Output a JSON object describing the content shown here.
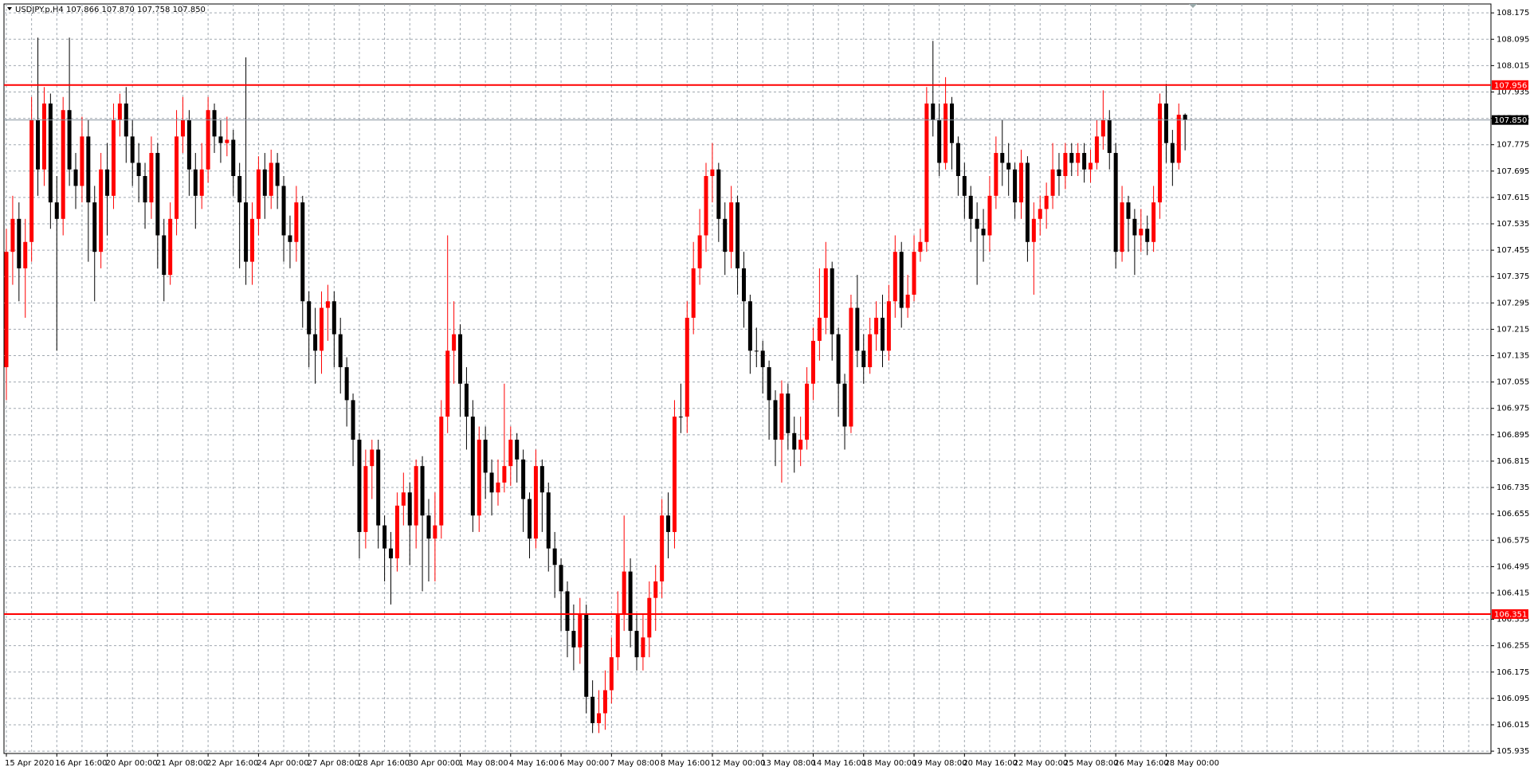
{
  "chart_data": {
    "type": "candlestick",
    "title": "USDJPY.p,H4  107.866 107.870 107.758 107.850",
    "categories": [
      "15 Apr 2020",
      null,
      null,
      null,
      null,
      null,
      null,
      null,
      "16 Apr 16:00",
      null,
      null,
      null,
      null,
      null,
      null,
      null,
      "20 Apr 00:00",
      null,
      null,
      null,
      null,
      null,
      null,
      null,
      "21 Apr 08:00",
      null,
      null,
      null,
      null,
      null,
      null,
      null,
      "22 Apr 16:00",
      null,
      null,
      null,
      null,
      null,
      null,
      null,
      "24 Apr 00:00",
      null,
      null,
      null,
      null,
      null,
      null,
      null,
      "27 Apr 08:00",
      null,
      null,
      null,
      null,
      null,
      null,
      null,
      "28 Apr 16:00",
      null,
      null,
      null,
      null,
      null,
      null,
      null,
      "30 Apr 00:00",
      null,
      null,
      null,
      null,
      null,
      null,
      null,
      "1 May 08:00",
      null,
      null,
      null,
      null,
      null,
      null,
      null,
      "4 May 16:00",
      null,
      null,
      null,
      null,
      null,
      null,
      null,
      "6 May 00:00",
      null,
      null,
      null,
      null,
      null,
      null,
      null,
      "7 May 08:00",
      null,
      null,
      null,
      null,
      null,
      null,
      null,
      "8 May 16:00",
      null,
      null,
      null,
      null,
      null,
      null,
      null,
      "12 May 00:00",
      null,
      null,
      null,
      null,
      null,
      null,
      null,
      "13 May 08:00",
      null,
      null,
      null,
      null,
      null,
      null,
      null,
      "14 May 16:00",
      null,
      null,
      null,
      null,
      null,
      null,
      null,
      "18 May 00:00",
      null,
      null,
      null,
      null,
      null,
      null,
      null,
      "19 May 08:00",
      null,
      null,
      null,
      null,
      null,
      null,
      null,
      "20 May 16:00",
      null,
      null,
      null,
      null,
      null,
      null,
      null,
      "22 May 00:00",
      null,
      null,
      null,
      null,
      null,
      null,
      null,
      "25 May 08:00",
      null,
      null,
      null,
      null,
      null,
      null,
      null,
      "26 May 16:00",
      null,
      null,
      null,
      null,
      null,
      null,
      null,
      "28 May 00:00",
      null,
      null,
      null
    ],
    "open": [
      107.1,
      107.45,
      107.55,
      107.4,
      107.48,
      107.85,
      107.7,
      107.9,
      107.6,
      107.55,
      107.88,
      107.7,
      107.65,
      107.8,
      107.6,
      107.45,
      107.7,
      107.62,
      107.85,
      107.9,
      107.8,
      107.72,
      107.68,
      107.6,
      107.75,
      107.5,
      107.38,
      107.55,
      107.8,
      107.85,
      107.7,
      107.62,
      107.7,
      107.88,
      107.8,
      107.78,
      107.79,
      107.68,
      107.6,
      107.42,
      107.55,
      107.7,
      107.62,
      107.72,
      107.65,
      107.5,
      107.48,
      107.6,
      107.3,
      107.2,
      107.15,
      107.28,
      107.3,
      107.2,
      107.1,
      107.0,
      106.88,
      106.6,
      106.8,
      106.85,
      106.62,
      106.55,
      106.52,
      106.68,
      106.72,
      106.62,
      106.8,
      106.65,
      106.58,
      106.62,
      106.95,
      107.15,
      107.2,
      107.05,
      106.95,
      106.65,
      106.88,
      106.78,
      106.72,
      106.75,
      106.8,
      106.88,
      106.82,
      106.7,
      106.58,
      106.8,
      106.72,
      106.55,
      106.5,
      106.42,
      106.3,
      106.25,
      106.35,
      106.1,
      106.02,
      106.05,
      106.12,
      106.22,
      106.35,
      106.48,
      106.3,
      106.22,
      106.28,
      106.4,
      106.45,
      106.65,
      106.6,
      106.95,
      106.95,
      107.25,
      107.4,
      107.5,
      107.68,
      107.7,
      107.55,
      107.45,
      107.6,
      107.4,
      107.3,
      107.15,
      107.15,
      107.1,
      107.0,
      106.88,
      107.02,
      106.9,
      106.85,
      106.88,
      107.05,
      107.18,
      107.25,
      107.4,
      107.2,
      107.05,
      106.92,
      107.28,
      107.15,
      107.1,
      107.2,
      107.25,
      107.15,
      107.3,
      107.45,
      107.28,
      107.32,
      107.45,
      107.48,
      107.9,
      107.85,
      107.72,
      107.9,
      107.78,
      107.68,
      107.62,
      107.55,
      107.52,
      107.5,
      107.62,
      107.75,
      107.72,
      107.7,
      107.6,
      107.72,
      107.48,
      107.55,
      107.58,
      107.62,
      107.7,
      107.68,
      107.75,
      107.72,
      107.75,
      107.7,
      107.72,
      107.8,
      107.85,
      107.75,
      107.45,
      107.6,
      107.55,
      107.5,
      107.52,
      107.48,
      107.6,
      107.9,
      107.78,
      107.72,
      107.866
    ],
    "high": [
      107.52,
      107.62,
      107.6,
      107.55,
      107.92,
      108.1,
      107.95,
      107.93,
      107.68,
      107.92,
      108.1,
      107.75,
      107.86,
      107.85,
      107.65,
      107.75,
      107.78,
      107.9,
      107.93,
      107.95,
      107.85,
      107.78,
      107.72,
      107.8,
      107.78,
      107.55,
      107.6,
      107.88,
      107.92,
      107.88,
      107.75,
      107.78,
      107.92,
      107.9,
      107.85,
      107.86,
      107.82,
      107.72,
      108.04,
      107.6,
      107.74,
      107.75,
      107.76,
      107.75,
      107.68,
      107.56,
      107.65,
      107.62,
      107.33,
      107.28,
      107.33,
      107.35,
      107.33,
      107.25,
      107.13,
      107.02,
      106.9,
      106.85,
      106.88,
      106.88,
      106.65,
      106.6,
      106.72,
      106.78,
      106.75,
      106.82,
      106.83,
      106.7,
      106.72,
      107.0,
      107.5,
      107.3,
      107.23,
      107.1,
      107.0,
      106.92,
      106.92,
      106.82,
      106.82,
      107.05,
      106.92,
      106.9,
      106.85,
      106.72,
      106.85,
      106.82,
      106.75,
      106.6,
      106.52,
      106.45,
      106.38,
      106.4,
      106.38,
      106.15,
      106.12,
      106.18,
      106.28,
      106.42,
      106.65,
      106.52,
      106.35,
      106.35,
      106.45,
      106.5,
      106.7,
      106.72,
      107.0,
      107.05,
      107.3,
      107.48,
      107.58,
      107.72,
      107.78,
      107.72,
      107.6,
      107.65,
      107.62,
      107.45,
      107.32,
      107.22,
      107.18,
      107.12,
      107.03,
      107.06,
      107.05,
      106.95,
      106.95,
      107.1,
      107.22,
      107.4,
      107.48,
      107.42,
      107.22,
      107.08,
      107.32,
      107.38,
      107.2,
      107.25,
      107.3,
      107.32,
      107.35,
      107.5,
      107.48,
      107.38,
      107.5,
      107.52,
      107.95,
      108.09,
      107.9,
      107.98,
      107.92,
      107.8,
      107.72,
      107.65,
      107.6,
      107.58,
      107.68,
      107.8,
      107.85,
      107.78,
      107.72,
      107.76,
      107.74,
      107.6,
      107.62,
      107.66,
      107.78,
      107.75,
      107.78,
      107.78,
      107.78,
      107.78,
      107.76,
      107.85,
      107.94,
      107.88,
      107.78,
      107.65,
      107.62,
      107.58,
      107.58,
      107.56,
      107.65,
      107.93,
      107.96,
      107.82,
      107.9,
      107.87
    ],
    "low": [
      107.0,
      107.35,
      107.3,
      107.25,
      107.42,
      107.62,
      107.65,
      107.52,
      107.15,
      107.5,
      107.65,
      107.58,
      107.6,
      107.42,
      107.3,
      107.4,
      107.5,
      107.58,
      107.8,
      107.72,
      107.65,
      107.6,
      107.52,
      107.55,
      107.4,
      107.3,
      107.35,
      107.5,
      107.75,
      107.62,
      107.52,
      107.58,
      107.66,
      107.75,
      107.72,
      107.74,
      107.62,
      107.4,
      107.35,
      107.35,
      107.5,
      107.55,
      107.58,
      107.58,
      107.42,
      107.4,
      107.42,
      107.22,
      107.1,
      107.05,
      107.08,
      107.18,
      107.1,
      107.02,
      106.92,
      106.8,
      106.52,
      106.55,
      106.7,
      106.55,
      106.45,
      106.38,
      106.48,
      106.62,
      106.5,
      106.55,
      106.42,
      106.45,
      106.45,
      106.58,
      106.9,
      107.05,
      106.95,
      106.85,
      106.6,
      106.6,
      106.7,
      106.65,
      106.68,
      106.72,
      106.74,
      106.75,
      106.6,
      106.52,
      106.55,
      106.6,
      106.48,
      106.4,
      106.3,
      106.22,
      106.18,
      106.2,
      106.05,
      105.99,
      105.99,
      106.0,
      106.08,
      106.18,
      106.3,
      106.25,
      106.18,
      106.18,
      106.22,
      106.3,
      106.4,
      106.52,
      106.55,
      106.9,
      106.9,
      107.2,
      107.35,
      107.45,
      107.6,
      107.48,
      107.38,
      107.4,
      107.32,
      107.22,
      107.08,
      107.1,
      107.02,
      106.88,
      106.8,
      106.75,
      106.85,
      106.78,
      106.8,
      106.85,
      107.0,
      107.12,
      107.2,
      107.12,
      106.95,
      106.85,
      106.9,
      107.1,
      107.05,
      107.08,
      107.15,
      107.1,
      107.12,
      107.25,
      107.22,
      107.25,
      107.3,
      107.42,
      107.45,
      107.8,
      107.68,
      107.7,
      107.7,
      107.62,
      107.55,
      107.48,
      107.35,
      107.42,
      107.45,
      107.58,
      107.65,
      107.62,
      107.55,
      107.55,
      107.42,
      107.32,
      107.5,
      107.52,
      107.58,
      107.62,
      107.64,
      107.68,
      107.68,
      107.66,
      107.66,
      107.7,
      107.76,
      107.7,
      107.4,
      107.42,
      107.45,
      107.38,
      107.45,
      107.44,
      107.45,
      107.55,
      107.72,
      107.65,
      107.7,
      107.758
    ],
    "close": [
      107.45,
      107.55,
      107.4,
      107.48,
      107.85,
      107.7,
      107.9,
      107.6,
      107.55,
      107.88,
      107.7,
      107.65,
      107.8,
      107.6,
      107.45,
      107.7,
      107.62,
      107.85,
      107.9,
      107.8,
      107.72,
      107.68,
      107.6,
      107.75,
      107.5,
      107.38,
      107.55,
      107.8,
      107.85,
      107.7,
      107.62,
      107.7,
      107.88,
      107.8,
      107.78,
      107.79,
      107.68,
      107.6,
      107.42,
      107.55,
      107.7,
      107.62,
      107.72,
      107.65,
      107.5,
      107.48,
      107.6,
      107.3,
      107.2,
      107.15,
      107.28,
      107.3,
      107.2,
      107.1,
      107.0,
      106.88,
      106.6,
      106.8,
      106.85,
      106.62,
      106.55,
      106.52,
      106.68,
      106.72,
      106.62,
      106.8,
      106.65,
      106.58,
      106.62,
      106.95,
      107.15,
      107.2,
      107.05,
      106.95,
      106.65,
      106.88,
      106.78,
      106.72,
      106.75,
      106.8,
      106.88,
      106.82,
      106.7,
      106.58,
      106.8,
      106.72,
      106.55,
      106.5,
      106.42,
      106.3,
      106.25,
      106.35,
      106.1,
      106.02,
      106.05,
      106.12,
      106.22,
      106.35,
      106.48,
      106.3,
      106.22,
      106.28,
      106.4,
      106.45,
      106.65,
      106.6,
      106.95,
      106.95,
      107.25,
      107.4,
      107.5,
      107.68,
      107.7,
      107.55,
      107.45,
      107.6,
      107.4,
      107.3,
      107.15,
      107.15,
      107.1,
      107.0,
      106.88,
      107.02,
      106.9,
      106.85,
      106.88,
      107.05,
      107.18,
      107.25,
      107.4,
      107.2,
      107.05,
      106.92,
      107.28,
      107.15,
      107.1,
      107.2,
      107.25,
      107.15,
      107.3,
      107.45,
      107.28,
      107.32,
      107.45,
      107.48,
      107.9,
      107.85,
      107.72,
      107.9,
      107.78,
      107.68,
      107.62,
      107.55,
      107.52,
      107.5,
      107.62,
      107.75,
      107.72,
      107.7,
      107.6,
      107.72,
      107.48,
      107.55,
      107.58,
      107.62,
      107.7,
      107.68,
      107.75,
      107.72,
      107.75,
      107.7,
      107.72,
      107.8,
      107.85,
      107.75,
      107.45,
      107.6,
      107.55,
      107.5,
      107.52,
      107.48,
      107.6,
      107.9,
      107.78,
      107.72,
      107.866,
      107.85
    ],
    "up_color": "#ff0000",
    "down_color": "#000000",
    "ylim": [
      105.928,
      108.202
    ],
    "yticks": [
      108.175,
      108.095,
      108.015,
      107.935,
      107.855,
      107.775,
      107.695,
      107.615,
      107.535,
      107.455,
      107.375,
      107.295,
      107.215,
      107.135,
      107.055,
      106.975,
      106.895,
      106.815,
      106.735,
      106.655,
      106.575,
      106.495,
      106.415,
      106.335,
      106.255,
      106.175,
      106.095,
      106.015,
      105.935
    ],
    "grid": true,
    "hlines": [
      {
        "value": 107.956,
        "color": "#ff0000"
      },
      {
        "value": 107.85,
        "label": "107.850",
        "color": "#000000"
      },
      {
        "value": 106.351,
        "color": "#ff0000"
      }
    ]
  }
}
